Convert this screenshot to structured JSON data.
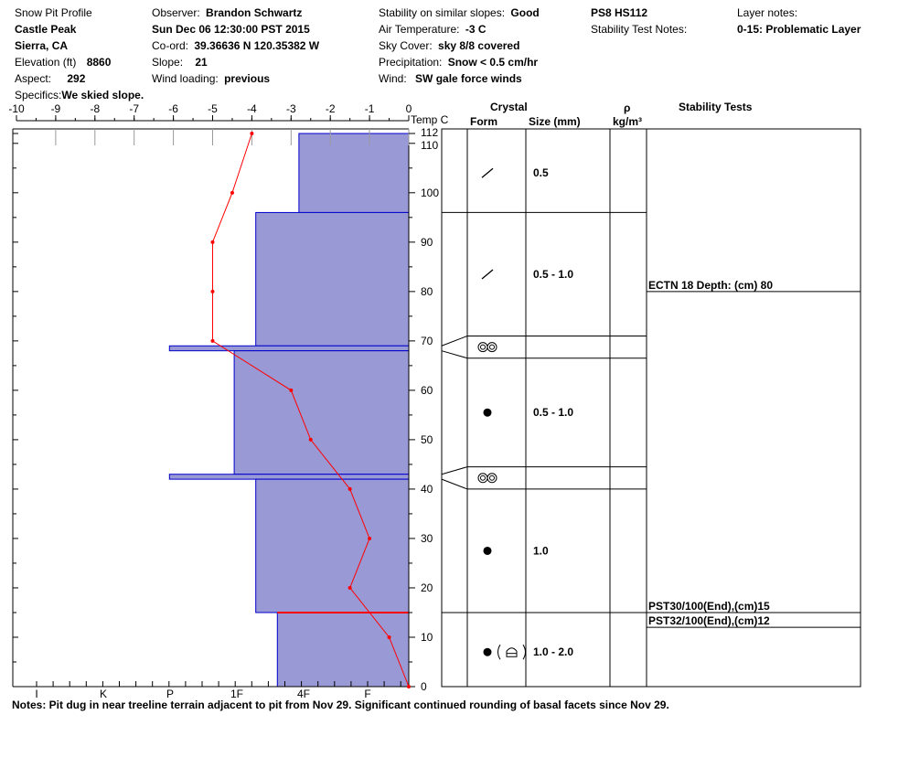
{
  "header": {
    "title": "Snow Pit Profile",
    "location": "Castle Peak",
    "region": "Sierra, CA",
    "elevation_label": "Elevation (ft)",
    "elevation_value": "8860",
    "aspect_label": "Aspect:",
    "aspect_value": "292",
    "specifics_label": "Specifics:",
    "specifics_value": "We skied slope.",
    "observer_label": "Observer:",
    "observer_value": "Brandon Schwartz",
    "datetime": "Sun Dec 06 12:30:00 PST 2015",
    "coord_label": "Co-ord:",
    "coord_value": "39.36636 N 120.35382 W",
    "slope_label": "Slope:",
    "slope_value": "21",
    "wind_loading_label": "Wind loading:",
    "wind_loading_value": "previous",
    "stability_label": "Stability on similar slopes:",
    "stability_value": "Good",
    "air_temp_label": "Air Temperature:",
    "air_temp_value": "-3 C",
    "sky_label": "Sky Cover:",
    "sky_value": "sky 8/8 covered",
    "precip_label": "Precipitation:",
    "precip_value": "Snow < 0.5 cm/hr",
    "wind_label": "Wind:",
    "wind_value": "SW gale force winds",
    "pit_id": "PS8 HS112",
    "stability_notes_label": "Stability Test Notes:",
    "layer_notes_label": "Layer notes:",
    "layer_notes_value": "0-15: Problematic Layer"
  },
  "table_headers": {
    "temp": "Temp C",
    "crystal": "Crystal",
    "form": "Form",
    "size": "Size (mm)",
    "rho": "ρ",
    "density_unit": "kg/m³",
    "stability_tests": "Stability Tests"
  },
  "notes": "Notes:  Pit dug in near treeline terrain adjacent to pit from Nov 29. Significant continued rounding of basal facets since Nov 29.",
  "colors": {
    "layer_fill": "#9999d6",
    "layer_edge": "#0000cc",
    "temp_line": "#ff0000",
    "problem_line": "#ff0000"
  },
  "chart_data": {
    "type": "line",
    "temp_axis": {
      "min": -10,
      "max": 0,
      "ticks": [
        -10,
        -9,
        -8,
        -7,
        -6,
        -5,
        -4,
        -3,
        -2,
        -1,
        0
      ]
    },
    "height_axis": {
      "min": 0,
      "max": 112,
      "ticks": [
        0,
        10,
        20,
        30,
        40,
        50,
        60,
        70,
        80,
        90,
        100,
        110,
        112
      ]
    },
    "hardness_labels": [
      "I",
      "K",
      "P",
      "1F",
      "4F",
      "F"
    ],
    "temperature_profile": [
      {
        "h": 112,
        "t": -4.0
      },
      {
        "h": 100,
        "t": -4.5
      },
      {
        "h": 90,
        "t": -5.0
      },
      {
        "h": 80,
        "t": -5.0
      },
      {
        "h": 70,
        "t": -5.0
      },
      {
        "h": 60,
        "t": -3.0
      },
      {
        "h": 50,
        "t": -2.5
      },
      {
        "h": 40,
        "t": -1.5
      },
      {
        "h": 30,
        "t": -1.0
      },
      {
        "h": 20,
        "t": -1.5
      },
      {
        "h": 10,
        "t": -0.5
      },
      {
        "h": 0,
        "t": 0.0
      }
    ],
    "layers": [
      {
        "bottom": 96,
        "top": 112,
        "hardness_temp": -2.8
      },
      {
        "bottom": 69,
        "top": 96,
        "hardness_temp": -3.9
      },
      {
        "bottom": 68,
        "top": 69,
        "hardness_temp": -6.1
      },
      {
        "bottom": 43,
        "top": 68,
        "hardness_temp": -4.45
      },
      {
        "bottom": 42,
        "top": 43,
        "hardness_temp": -6.1
      },
      {
        "bottom": 15,
        "top": 42,
        "hardness_temp": -3.9
      },
      {
        "bottom": 0,
        "top": 15,
        "hardness_temp": -3.35
      }
    ],
    "problematic_layer_top": 15,
    "crystal_rows": [
      {
        "top": 112,
        "bottom": 96,
        "form": "slash",
        "size": "0.5"
      },
      {
        "top": 96,
        "bottom": 71,
        "form": "slash",
        "size": "0.5 - 1.0"
      },
      {
        "top": 71,
        "bottom": 66.5,
        "form": "double-ring",
        "size": ""
      },
      {
        "top": 66.5,
        "bottom": 44.5,
        "form": "dot",
        "size": "0.5 - 1.0"
      },
      {
        "top": 44.5,
        "bottom": 40,
        "form": "double-ring",
        "size": ""
      },
      {
        "top": 40,
        "bottom": 15,
        "form": "dot",
        "size": "1.0"
      },
      {
        "top": 15,
        "bottom": 0,
        "form": "dot-depth-hoar",
        "size": "1.0 - 2.0"
      }
    ],
    "stability_tests": [
      {
        "height": 80,
        "text": "ECTN 18   Depth: (cm) 80"
      },
      {
        "height": 15,
        "text": "PST30/100(End),(cm)15"
      },
      {
        "height": 12,
        "text": "PST32/100(End),(cm)12"
      }
    ]
  }
}
